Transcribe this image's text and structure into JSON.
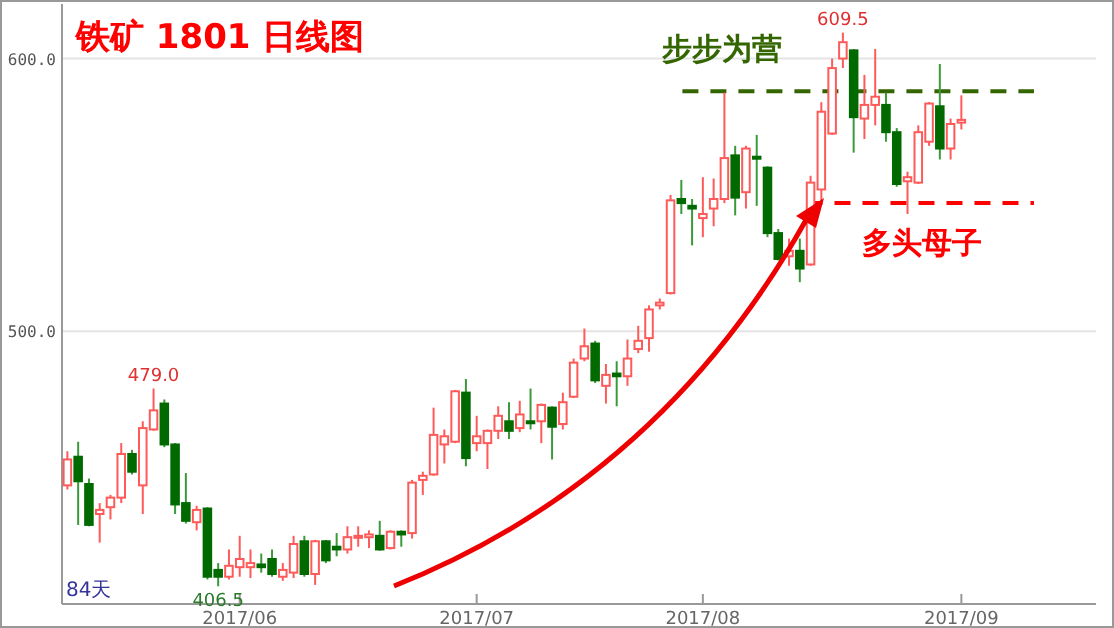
{
  "chart_data": {
    "type": "candlestick",
    "title": "铁矿 1801 日线图",
    "categories": [
      null,
      null,
      null,
      null,
      null,
      null,
      null,
      null,
      null,
      null,
      null,
      null,
      null,
      null,
      null,
      null,
      "2017/06",
      null,
      null,
      null,
      null,
      null,
      null,
      null,
      null,
      null,
      null,
      null,
      null,
      null,
      null,
      null,
      null,
      null,
      null,
      null,
      null,
      null,
      "2017/07",
      null,
      null,
      null,
      null,
      null,
      null,
      null,
      null,
      null,
      null,
      null,
      null,
      null,
      null,
      null,
      null,
      null,
      null,
      null,
      null,
      "2017/08",
      null,
      null,
      null,
      null,
      null,
      null,
      null,
      null,
      null,
      null,
      null,
      null,
      null,
      null,
      null,
      null,
      null,
      null,
      null,
      null,
      null,
      null,
      null,
      "2017/09"
    ],
    "ohlc": [
      [
        443.5,
        456,
        442,
        453
      ],
      [
        454,
        459.5,
        429,
        445
      ],
      [
        444,
        446,
        428.5,
        429
      ],
      [
        433,
        437,
        422.5,
        434.5
      ],
      [
        435.5,
        440,
        431,
        439
      ],
      [
        439,
        459,
        437,
        455
      ],
      [
        455,
        456.5,
        447.5,
        448.5
      ],
      [
        443.5,
        467,
        433,
        464.5
      ],
      [
        464,
        479,
        463.5,
        471
      ],
      [
        473.5,
        475,
        457.5,
        458.5
      ],
      [
        458.5,
        459,
        433,
        436.5
      ],
      [
        437,
        448,
        429.5,
        430.5
      ],
      [
        430,
        436,
        427,
        434.5
      ],
      [
        435,
        435.5,
        409,
        410
      ],
      [
        412.5,
        415,
        406.5,
        410
      ],
      [
        410,
        420,
        409,
        414
      ],
      [
        413.5,
        425,
        410,
        416.5
      ],
      [
        413.5,
        420,
        409.5,
        415
      ],
      [
        414.5,
        418.5,
        411.5,
        413.5
      ],
      [
        416.5,
        420,
        410,
        411
      ],
      [
        410,
        415,
        408.5,
        412.5
      ],
      [
        411.5,
        425,
        409.5,
        422
      ],
      [
        423,
        425,
        410,
        411
      ],
      [
        411,
        423.5,
        407,
        423
      ],
      [
        423,
        423.5,
        415,
        416
      ],
      [
        421,
        426,
        417.5,
        420
      ],
      [
        420,
        428.5,
        418.5,
        424.5
      ],
      [
        424.5,
        428.5,
        421,
        425
      ],
      [
        424.5,
        427,
        420.5,
        425.5
      ],
      [
        425,
        430.5,
        419.5,
        420
      ],
      [
        420.5,
        427,
        420,
        426.5
      ],
      [
        426.5,
        427,
        421,
        425.5
      ],
      [
        426,
        445.5,
        424,
        444.5
      ],
      [
        445.5,
        448.5,
        440,
        447
      ],
      [
        447.5,
        472,
        447,
        462
      ],
      [
        458.5,
        464,
        451.5,
        461.5
      ],
      [
        459.5,
        478.5,
        459,
        478
      ],
      [
        477.5,
        482.5,
        450.5,
        453.5
      ],
      [
        459,
        469,
        456,
        461.5
      ],
      [
        459,
        464,
        449.5,
        463.5
      ],
      [
        463.5,
        472.5,
        460.5,
        469
      ],
      [
        467,
        474,
        460.5,
        463.5
      ],
      [
        464.5,
        474.5,
        463,
        469.5
      ],
      [
        467,
        479,
        464,
        466.5
      ],
      [
        467,
        473.5,
        459,
        473
      ],
      [
        472,
        472.5,
        453,
        465
      ],
      [
        466,
        477.5,
        464,
        474
      ],
      [
        476,
        490,
        475.5,
        488.5
      ],
      [
        490,
        501,
        489,
        494.5
      ],
      [
        495.5,
        496.5,
        481,
        482
      ],
      [
        480,
        488,
        473.5,
        484
      ],
      [
        484.5,
        489,
        472.5,
        483.5
      ],
      [
        483.5,
        497,
        480,
        490
      ],
      [
        493.5,
        502,
        492,
        496.5
      ],
      [
        497.5,
        509.5,
        492.5,
        508
      ],
      [
        509.5,
        512,
        508,
        510.5
      ],
      [
        514,
        550,
        513.5,
        548
      ],
      [
        548.5,
        555.5,
        543,
        547
      ],
      [
        546,
        548.5,
        531.5,
        545
      ],
      [
        541.5,
        556.5,
        534.5,
        543
      ],
      [
        545,
        556,
        538.5,
        548.5
      ],
      [
        548.5,
        587.5,
        547,
        563.5
      ],
      [
        564.5,
        568,
        542.5,
        549
      ],
      [
        551,
        568,
        545,
        567
      ],
      [
        564,
        572,
        546,
        563.5
      ],
      [
        560,
        560.5,
        534.5,
        536
      ],
      [
        536,
        537.5,
        526,
        526.5
      ],
      [
        527.5,
        534,
        524,
        529.5
      ],
      [
        529.5,
        534,
        518,
        523
      ],
      [
        524.5,
        557,
        524,
        554.5
      ],
      [
        552,
        584,
        547,
        580.5
      ],
      [
        572.5,
        600,
        572,
        596.5
      ],
      [
        600,
        609.5,
        596.5,
        606
      ],
      [
        603,
        603.5,
        565.5,
        578.5
      ],
      [
        578,
        594,
        570.5,
        583
      ],
      [
        583,
        603.5,
        575.5,
        586
      ],
      [
        583,
        587.5,
        569.5,
        573
      ],
      [
        573,
        574.5,
        553,
        554
      ],
      [
        555,
        558.5,
        543,
        556.5
      ],
      [
        554.5,
        575.5,
        554,
        573
      ],
      [
        569.5,
        584,
        568,
        583.5
      ],
      [
        582.5,
        598,
        563,
        567
      ],
      [
        567,
        578,
        563,
        576
      ],
      [
        576.5,
        586.5,
        574,
        577.5
      ]
    ],
    "ylim": [
      400,
      620
    ],
    "yticks": [
      {
        "value": 500,
        "label": "500.0"
      },
      {
        "value": 600,
        "label": "600.0"
      }
    ],
    "grid": "y",
    "ref_lines": [
      {
        "axis": "y",
        "value": 588,
        "label": "步步为营",
        "color": "#336600",
        "line_style": "dashed"
      },
      {
        "axis": "y",
        "value": 547,
        "label": "多头母子",
        "color": "#ff0000",
        "line_style": "dashed"
      }
    ],
    "annotations": [
      {
        "text": "609.5",
        "y": 609.5
      },
      {
        "text": "479.0",
        "y": 479
      },
      {
        "text": "406.5",
        "y": 406.5
      },
      "84天"
    ]
  }
}
